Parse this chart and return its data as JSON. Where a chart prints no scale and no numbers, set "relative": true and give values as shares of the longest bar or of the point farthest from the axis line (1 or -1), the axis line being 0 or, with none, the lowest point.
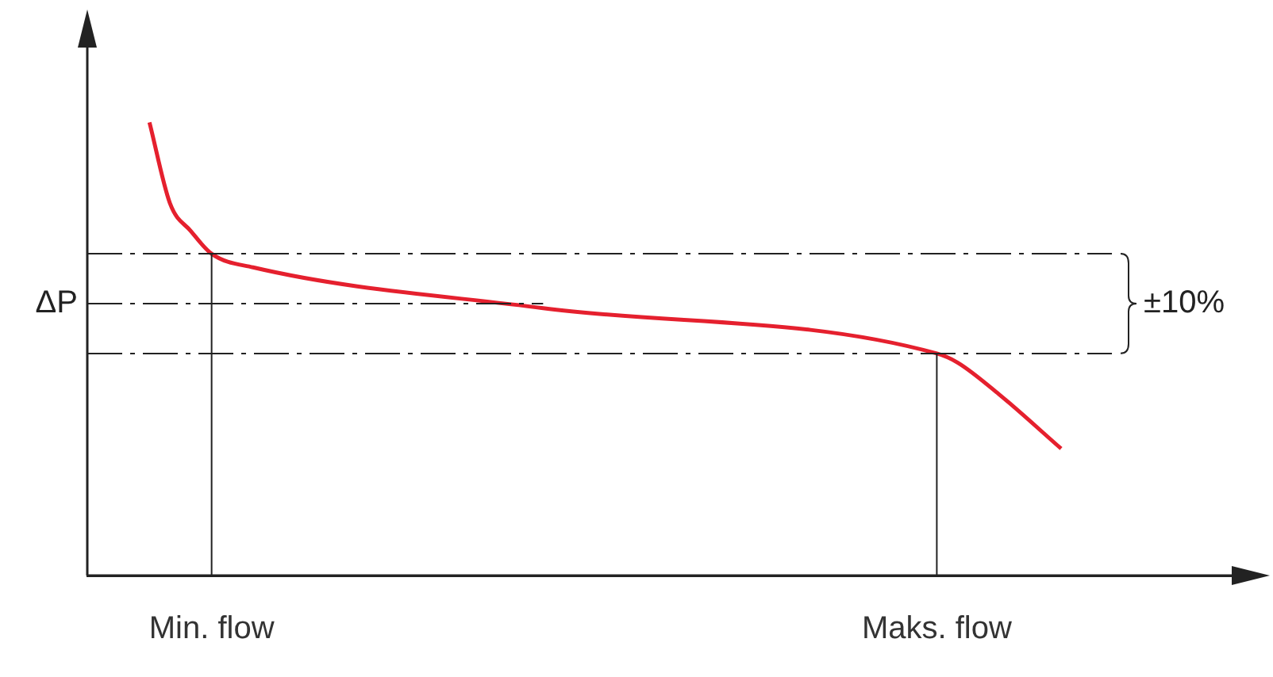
{
  "chart_data": {
    "type": "line",
    "relative": true,
    "categories": [
      null,
      null,
      null,
      null,
      null,
      null,
      "Min. flow",
      null,
      null,
      null,
      null,
      null,
      null,
      null,
      null,
      null,
      null,
      null,
      null,
      null,
      null,
      null,
      null,
      null,
      null,
      null,
      null,
      null,
      null,
      null,
      null,
      null,
      null,
      null,
      null,
      null,
      null,
      null,
      null,
      null,
      null,
      "Maks. flow",
      null,
      null,
      null,
      null,
      null,
      null,
      null,
      null,
      null,
      null,
      null,
      null,
      null,
      null,
      null
    ],
    "series": [
      {
        "color": "#e5202e",
        "values": [
          null,
          null,
          null,
          1,
          0.82,
          0.76,
          0.71,
          null,
          0.68,
          null,
          null,
          null,
          null,
          null,
          null,
          null,
          null,
          null,
          null,
          null,
          null,
          null,
          0.59,
          null,
          null,
          null,
          null,
          null,
          null,
          null,
          null,
          null,
          null,
          null,
          null,
          null,
          null,
          null,
          null,
          null,
          null,
          0.49,
          0.47,
          null,
          0.4,
          null,
          null,
          0.28,
          null,
          null,
          null,
          null,
          null,
          null,
          null,
          null,
          null
        ]
      }
    ],
    "ref_lines": [
      {
        "axis": "y",
        "value": 0.6,
        "label": "ΔP",
        "line_style": "dashdot"
      },
      {
        "axis": "y",
        "value": 0.71,
        "line_style": "dashdot"
      },
      {
        "axis": "y",
        "value": 0.49,
        "line_style": "dashdot"
      },
      {
        "axis": "x",
        "value": "Min. flow"
      },
      {
        "axis": "x",
        "value": "Maks. flow"
      }
    ],
    "annotations": [
      "±10%"
    ],
    "grid": false,
    "legend": false,
    "marker": "none",
    "line_style": "solid"
  }
}
